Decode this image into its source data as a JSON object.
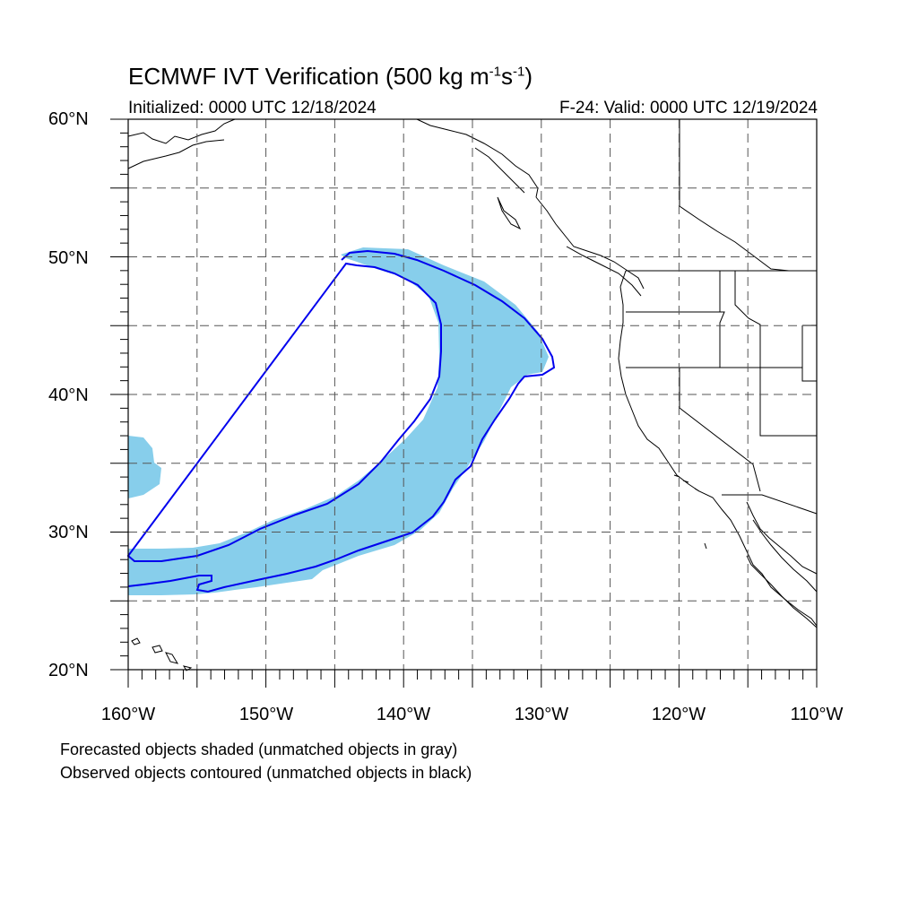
{
  "header": {
    "title_main": "ECMWF IVT Verification (500 kg m",
    "title_sup1": "-1",
    "title_mid": "s",
    "title_sup2": "-1",
    "title_end": ")",
    "initialized": "Initialized: 0000 UTC 12/18/2024",
    "valid": "F-24: Valid: 0000 UTC 12/19/2024"
  },
  "axes": {
    "lat_labels": [
      "60°N",
      "50°N",
      "40°N",
      "30°N",
      "20°N"
    ],
    "lon_labels": [
      "160°W",
      "150°W",
      "140°W",
      "130°W",
      "120°W",
      "110°W"
    ],
    "lat_range": [
      20,
      60
    ],
    "lon_range": [
      -160,
      -110
    ],
    "grid": "dashed, every 5 degrees"
  },
  "legend": {
    "line1": "Forecasted objects shaded (unmatched objects in gray)",
    "line2": "Observed objects contoured (unmatched objects in black)"
  },
  "colors": {
    "forecast_fill": "#87ceeb",
    "observed_contour": "#0000ee",
    "coastline": "#000000",
    "grid": "#555555"
  }
}
